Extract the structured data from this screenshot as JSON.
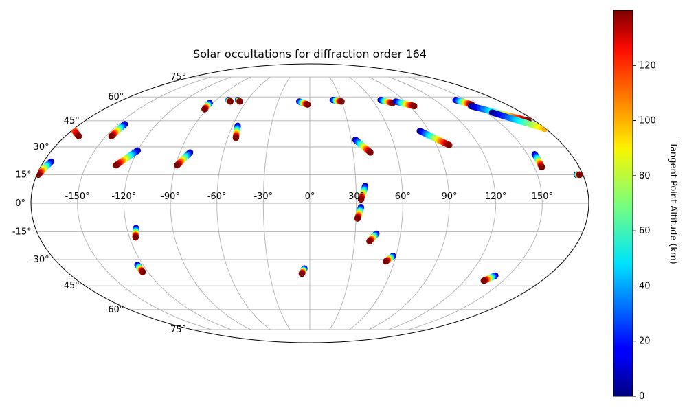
{
  "chart_data": {
    "type": "scatter",
    "projection": "mollweide",
    "title": "Solar occultations for diffraction order 164",
    "lon_ticks": [
      "-150°",
      "-120°",
      "-90°",
      "-60°",
      "-30°",
      "0°",
      "30°",
      "60°",
      "90°",
      "120°",
      "150°"
    ],
    "lon_tick_values": [
      -150,
      -120,
      -90,
      -60,
      -30,
      0,
      30,
      60,
      90,
      120,
      150
    ],
    "lat_ticks": [
      "75°",
      "60°",
      "45°",
      "30°",
      "15°",
      "0°",
      "-15°",
      "-30°",
      "-45°",
      "-60°",
      "-75°"
    ],
    "lat_tick_values": [
      75,
      60,
      45,
      30,
      15,
      0,
      -15,
      -30,
      -45,
      -60,
      -75
    ],
    "grid": true,
    "colorbar": {
      "label": "Tangent Point Altitude (km)",
      "ticks": [
        "0",
        "20",
        "40",
        "60",
        "80",
        "100",
        "120"
      ],
      "tick_values": [
        0,
        20,
        40,
        60,
        80,
        100,
        120
      ],
      "range": [
        0,
        140
      ],
      "colormap": "jet"
    },
    "tracks": [
      {
        "start": [
          -175,
          22
        ],
        "end": [
          -179,
          15
        ]
      },
      {
        "start": [
          -145,
          43
        ],
        "end": [
          -146,
          36
        ]
      },
      {
        "start": [
          -120,
          28
        ],
        "end": [
          -130,
          20
        ]
      },
      {
        "start": [
          -93,
          56
        ],
        "end": [
          -92,
          52
        ]
      },
      {
        "start": [
          -83,
          27
        ],
        "end": [
          -89,
          20
        ]
      },
      {
        "start": [
          -78,
          58
        ],
        "end": [
          -75,
          57
        ]
      },
      {
        "start": [
          -56,
          42
        ],
        "end": [
          -54,
          35
        ]
      },
      {
        "start": [
          -69,
          58
        ],
        "end": [
          -66,
          57
        ]
      },
      {
        "start": [
          -10,
          57
        ],
        "end": [
          -2,
          55
        ]
      },
      {
        "start": [
          22,
          58
        ],
        "end": [
          30,
          57
        ]
      },
      {
        "start": [
          33,
          34
        ],
        "end": [
          42,
          27
        ]
      },
      {
        "start": [
          68,
          58
        ],
        "end": [
          77,
          56
        ]
      },
      {
        "start": [
          81,
          57
        ],
        "end": [
          94,
          54
        ]
      },
      {
        "start": [
          83,
          39
        ],
        "end": [
          99,
          31
        ]
      },
      {
        "start": [
          140,
          58
        ],
        "end": [
          148,
          55
        ]
      },
      {
        "start": [
          145,
          54
        ],
        "end": [
          175,
          45
        ]
      },
      {
        "start": [
          155,
          50
        ],
        "end": [
          190,
          36
        ]
      },
      {
        "start": [
          155,
          26
        ],
        "end": [
          155,
          19
        ]
      },
      {
        "start": [
          176,
          15
        ],
        "end": [
          178,
          15
        ]
      },
      {
        "start": [
          36,
          9
        ],
        "end": [
          33,
          2
        ]
      },
      {
        "start": [
          33,
          -2
        ],
        "end": [
          31,
          -8
        ]
      },
      {
        "start": [
          -114,
          -13
        ],
        "end": [
          -116,
          -18
        ]
      },
      {
        "start": [
          -124,
          -33
        ],
        "end": [
          -124,
          -37
        ]
      },
      {
        "start": [
          -4,
          -35
        ],
        "end": [
          -6,
          -38
        ]
      },
      {
        "start": [
          44,
          -16
        ],
        "end": [
          40,
          -20
        ]
      },
      {
        "start": [
          58,
          -28
        ],
        "end": [
          54,
          -31
        ]
      },
      {
        "start": [
          140,
          -39
        ],
        "end": [
          135,
          -42
        ]
      }
    ]
  }
}
